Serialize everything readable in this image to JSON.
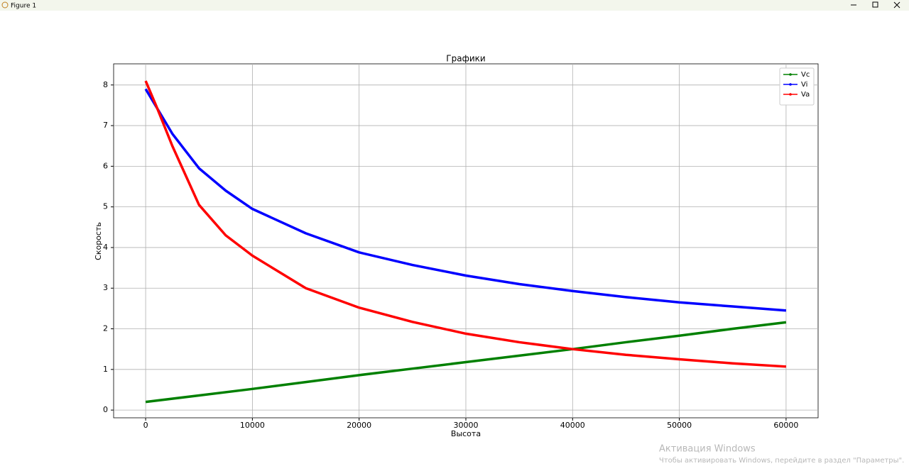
{
  "window": {
    "title": "Figure 1"
  },
  "watermark": {
    "title": "Активация Windows",
    "text": "Чтобы активировать Windows, перейдите в раздел \"Параметры\"."
  },
  "chart_data": {
    "type": "line",
    "title": "Графики",
    "x_label": "Высота",
    "y_label": "Скорость",
    "xlim": [
      -3000,
      63000
    ],
    "ylim": [
      -0.19,
      8.52
    ],
    "xticks": [
      0,
      10000,
      20000,
      30000,
      40000,
      50000,
      60000
    ],
    "yticks": [
      0,
      1,
      2,
      3,
      4,
      5,
      6,
      7,
      8
    ],
    "grid": true,
    "legend": "upper right",
    "series": [
      {
        "name": "Vc",
        "color": "#008000",
        "x": [
          0,
          5000,
          10000,
          15000,
          20000,
          25000,
          30000,
          35000,
          40000,
          45000,
          50000,
          55000,
          60000
        ],
        "values": [
          0.2,
          0.36,
          0.52,
          0.69,
          0.86,
          1.02,
          1.18,
          1.34,
          1.5,
          1.67,
          1.83,
          2.0,
          2.16
        ]
      },
      {
        "name": "Vi",
        "color": "#0000ff",
        "x": [
          0,
          2500,
          5000,
          7500,
          10000,
          15000,
          20000,
          25000,
          30000,
          35000,
          40000,
          45000,
          50000,
          55000,
          60000
        ],
        "values": [
          7.9,
          6.8,
          5.95,
          5.4,
          4.95,
          4.35,
          3.88,
          3.57,
          3.31,
          3.1,
          2.93,
          2.78,
          2.65,
          2.55,
          2.45
        ]
      },
      {
        "name": "Va",
        "color": "#ff0000",
        "x": [
          0,
          1000,
          2500,
          5000,
          7500,
          10000,
          15000,
          20000,
          25000,
          30000,
          35000,
          40000,
          45000,
          50000,
          55000,
          60000
        ],
        "values": [
          8.1,
          7.48,
          6.5,
          5.05,
          4.3,
          3.8,
          3.0,
          2.52,
          2.17,
          1.88,
          1.67,
          1.5,
          1.36,
          1.25,
          1.15,
          1.07
        ]
      }
    ]
  }
}
